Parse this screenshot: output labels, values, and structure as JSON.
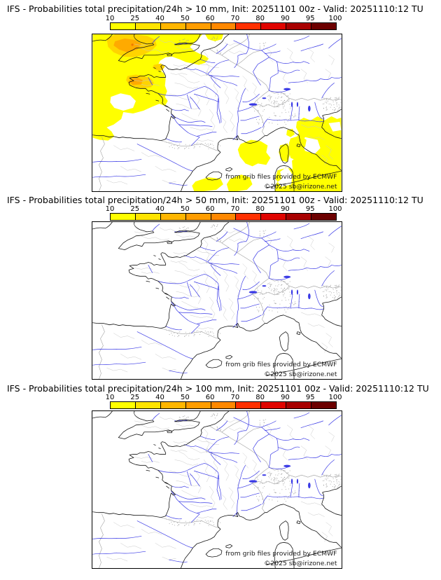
{
  "product": {
    "model": "IFS",
    "parameter": "Probabilities total precipitation/24h",
    "init": "20251101 00z",
    "valid": "20251110:12 TU"
  },
  "colorbar": {
    "ticks": [
      "10",
      "25",
      "40",
      "50",
      "60",
      "70",
      "80",
      "90",
      "95",
      "100"
    ],
    "colors": [
      "#ffff00",
      "#ffe400",
      "#ffb600",
      "#ff9d00",
      "#ff8800",
      "#ff3000",
      "#e00400",
      "#a80000",
      "#6c0000"
    ]
  },
  "attribution": {
    "source": "from grib files provided by ECMWF",
    "copyright": "©2025 sb@irizone.net"
  },
  "panels": [
    {
      "threshold_mm": 10,
      "title": "IFS - Probabilities total precipitation/24h > 10 mm, Init: 20251101 00z - Valid: 20251110:12 TU",
      "has_probability_shading": true
    },
    {
      "threshold_mm": 50,
      "title": "IFS - Probabilities total precipitation/24h > 50 mm, Init: 20251101 00z - Valid: 20251110:12 TU",
      "has_probability_shading": false
    },
    {
      "threshold_mm": 100,
      "title": "IFS - Probabilities total precipitation/24h > 100 mm, Init: 20251101 00z - Valid: 20251110:12 TU",
      "has_probability_shading": false
    }
  ],
  "map": {
    "region": "France / Western Europe",
    "shading_colors": {
      "yellow": "#ffff00",
      "orange_light": "#ffd400",
      "orange": "#ffaa00"
    }
  }
}
